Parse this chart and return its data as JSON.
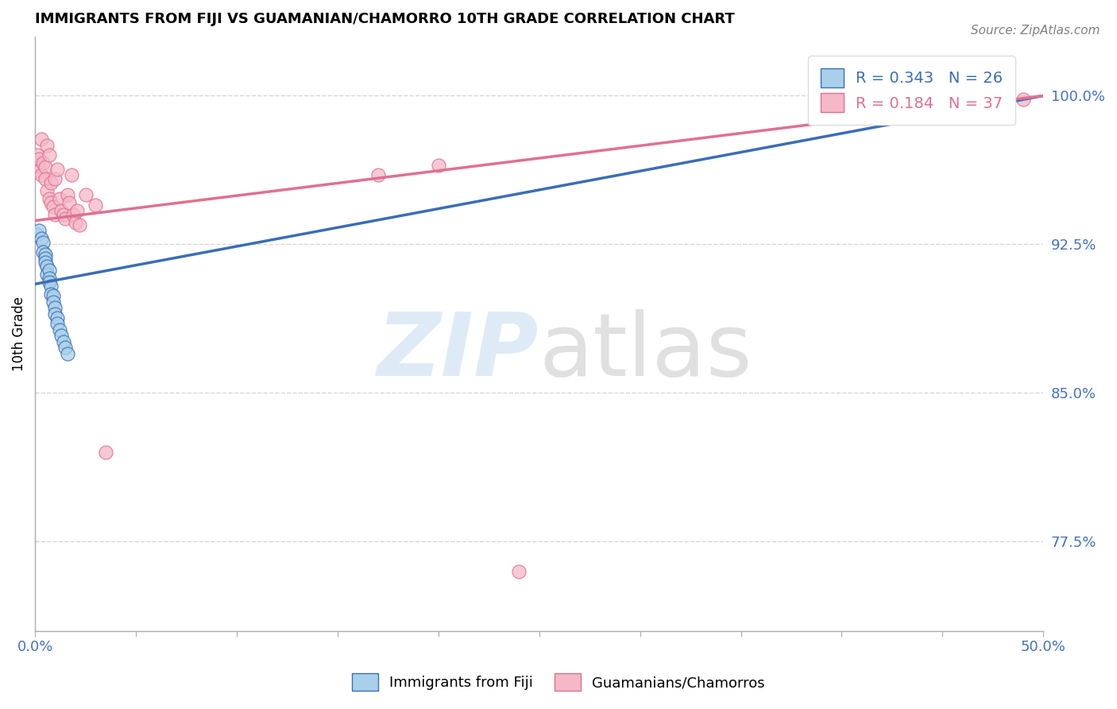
{
  "title": "IMMIGRANTS FROM FIJI VS GUAMANIAN/CHAMORRO 10TH GRADE CORRELATION CHART",
  "source": "Source: ZipAtlas.com",
  "ylabel": "10th Grade",
  "xlim": [
    0.0,
    0.5
  ],
  "ylim": [
    0.73,
    1.03
  ],
  "xticks": [
    0.0,
    0.05,
    0.1,
    0.15,
    0.2,
    0.25,
    0.3,
    0.35,
    0.4,
    0.45,
    0.5
  ],
  "xticklabels": [
    "0.0%",
    "",
    "",
    "",
    "",
    "",
    "",
    "",
    "",
    "",
    "50.0%"
  ],
  "yticks_right": [
    0.775,
    0.85,
    0.925,
    1.0
  ],
  "ytick_right_labels": [
    "77.5%",
    "85.0%",
    "92.5%",
    "100.0%"
  ],
  "fiji_R": 0.343,
  "fiji_N": 26,
  "chamorro_R": 0.184,
  "chamorro_N": 37,
  "fiji_color": "#a8d0ea",
  "chamorro_color": "#f4b8c8",
  "fiji_line_color": "#3a6eb5",
  "chamorro_line_color": "#e07090",
  "background_color": "#ffffff",
  "grid_color": "#cccccc",
  "fiji_x": [
    0.001,
    0.002,
    0.003,
    0.004,
    0.004,
    0.005,
    0.005,
    0.005,
    0.006,
    0.006,
    0.007,
    0.007,
    0.007,
    0.008,
    0.008,
    0.009,
    0.009,
    0.01,
    0.01,
    0.011,
    0.011,
    0.012,
    0.013,
    0.014,
    0.015,
    0.016
  ],
  "fiji_y": [
    0.93,
    0.932,
    0.928,
    0.926,
    0.921,
    0.92,
    0.918,
    0.916,
    0.914,
    0.91,
    0.912,
    0.908,
    0.906,
    0.904,
    0.9,
    0.899,
    0.896,
    0.893,
    0.89,
    0.888,
    0.885,
    0.882,
    0.879,
    0.876,
    0.873,
    0.87
  ],
  "chamorro_x": [
    0.001,
    0.001,
    0.002,
    0.002,
    0.003,
    0.003,
    0.004,
    0.005,
    0.005,
    0.006,
    0.006,
    0.007,
    0.007,
    0.008,
    0.008,
    0.009,
    0.01,
    0.01,
    0.011,
    0.012,
    0.013,
    0.014,
    0.015,
    0.016,
    0.017,
    0.018,
    0.019,
    0.02,
    0.021,
    0.022,
    0.025,
    0.03,
    0.035,
    0.17,
    0.2,
    0.24,
    0.49
  ],
  "chamorro_y": [
    0.97,
    0.965,
    0.968,
    0.962,
    0.96,
    0.978,
    0.966,
    0.964,
    0.958,
    0.975,
    0.952,
    0.97,
    0.948,
    0.956,
    0.946,
    0.944,
    0.958,
    0.94,
    0.963,
    0.948,
    0.942,
    0.94,
    0.938,
    0.95,
    0.946,
    0.96,
    0.94,
    0.936,
    0.942,
    0.935,
    0.95,
    0.945,
    0.82,
    0.96,
    0.965,
    0.76,
    0.998
  ],
  "fiji_line_x0": 0.0,
  "fiji_line_y0": 0.905,
  "fiji_line_x1": 0.5,
  "fiji_line_y1": 1.0,
  "chamorro_line_x0": 0.0,
  "chamorro_line_y0": 0.937,
  "chamorro_line_x1": 0.5,
  "chamorro_line_y1": 1.0
}
